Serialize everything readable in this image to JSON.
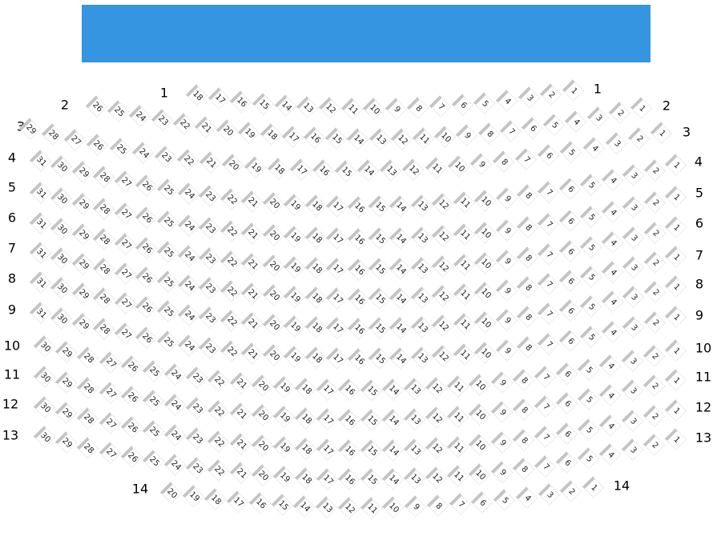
{
  "stage": {
    "color": "#3595e0"
  },
  "rows": [
    {
      "label": "1",
      "seats": [
        18,
        17,
        16,
        15,
        14,
        13,
        12,
        11,
        10,
        9,
        8,
        7,
        6,
        5,
        4,
        3,
        2,
        1
      ]
    },
    {
      "label": "2",
      "seats": [
        26,
        25,
        24,
        23,
        22,
        21,
        20,
        19,
        18,
        17,
        16,
        15,
        14,
        13,
        12,
        11,
        10,
        9,
        8,
        7,
        6,
        5,
        4,
        3,
        2,
        1
      ]
    },
    {
      "label": "3",
      "seats": [
        29,
        28,
        27,
        26,
        25,
        24,
        23,
        22,
        21,
        20,
        19,
        18,
        17,
        16,
        15,
        14,
        13,
        12,
        11,
        10,
        9,
        8,
        7,
        6,
        5,
        4,
        3,
        2,
        1
      ]
    },
    {
      "label": "4",
      "seats": [
        31,
        30,
        29,
        28,
        27,
        26,
        25,
        24,
        23,
        22,
        21,
        20,
        19,
        18,
        17,
        16,
        15,
        14,
        13,
        12,
        11,
        10,
        9,
        8,
        7,
        6,
        5,
        4,
        3,
        2,
        1
      ]
    },
    {
      "label": "5",
      "seats": [
        31,
        30,
        29,
        28,
        27,
        26,
        25,
        24,
        23,
        22,
        21,
        20,
        19,
        18,
        17,
        16,
        15,
        14,
        13,
        12,
        11,
        10,
        9,
        8,
        7,
        6,
        5,
        4,
        3,
        2,
        1
      ]
    },
    {
      "label": "6",
      "seats": [
        31,
        30,
        29,
        28,
        27,
        26,
        25,
        24,
        23,
        22,
        21,
        20,
        19,
        18,
        17,
        16,
        15,
        14,
        13,
        12,
        11,
        10,
        9,
        8,
        7,
        6,
        5,
        4,
        3,
        2,
        1
      ]
    },
    {
      "label": "7",
      "seats": [
        31,
        30,
        29,
        28,
        27,
        26,
        25,
        24,
        23,
        22,
        21,
        20,
        19,
        18,
        17,
        16,
        15,
        14,
        13,
        12,
        11,
        10,
        9,
        8,
        7,
        6,
        5,
        4,
        3,
        2,
        1
      ]
    },
    {
      "label": "8",
      "seats": [
        31,
        30,
        29,
        28,
        27,
        26,
        25,
        24,
        23,
        22,
        21,
        20,
        19,
        18,
        17,
        16,
        15,
        14,
        13,
        12,
        11,
        10,
        9,
        8,
        7,
        6,
        5,
        4,
        3,
        2,
        1
      ]
    },
    {
      "label": "9",
      "seats": [
        31,
        30,
        29,
        28,
        27,
        26,
        25,
        24,
        23,
        22,
        21,
        20,
        19,
        18,
        17,
        16,
        15,
        14,
        13,
        12,
        11,
        10,
        9,
        8,
        7,
        6,
        5,
        4,
        3,
        2,
        1
      ]
    },
    {
      "label": "10",
      "seats": [
        30,
        29,
        28,
        27,
        26,
        25,
        24,
        23,
        22,
        21,
        20,
        19,
        18,
        17,
        16,
        15,
        14,
        13,
        12,
        11,
        10,
        9,
        8,
        7,
        6,
        5,
        4,
        3,
        2,
        1
      ]
    },
    {
      "label": "11",
      "seats": [
        30,
        29,
        28,
        27,
        26,
        25,
        24,
        23,
        22,
        21,
        20,
        19,
        18,
        17,
        16,
        15,
        14,
        13,
        12,
        11,
        10,
        9,
        8,
        7,
        6,
        5,
        4,
        3,
        2,
        1
      ]
    },
    {
      "label": "12",
      "seats": [
        30,
        29,
        28,
        27,
        26,
        25,
        24,
        23,
        22,
        21,
        20,
        19,
        18,
        17,
        16,
        15,
        14,
        13,
        12,
        11,
        10,
        9,
        8,
        7,
        6,
        5,
        4,
        3,
        2,
        1
      ]
    },
    {
      "label": "13",
      "seats": [
        30,
        29,
        28,
        27,
        26,
        25,
        24,
        23,
        22,
        21,
        20,
        19,
        18,
        17,
        16,
        15,
        14,
        13,
        12,
        11,
        10,
        9,
        8,
        7,
        6,
        5,
        4,
        3,
        2,
        1
      ]
    },
    {
      "label": "14",
      "seats": [
        20,
        19,
        18,
        17,
        16,
        15,
        14,
        13,
        12,
        11,
        10,
        9,
        8,
        7,
        6,
        5,
        4,
        3,
        2,
        1
      ]
    }
  ]
}
